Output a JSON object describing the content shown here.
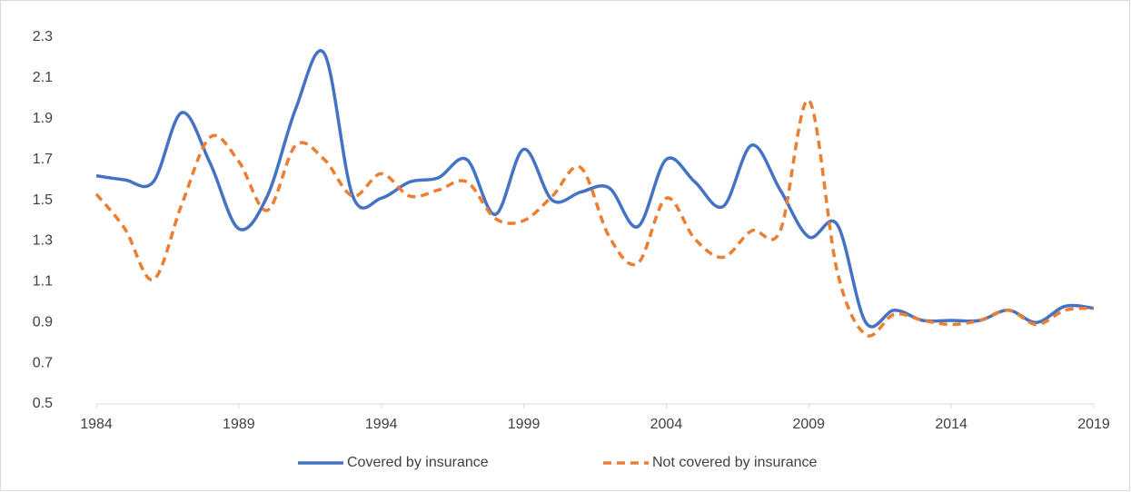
{
  "chart_data": {
    "type": "line",
    "x": [
      1984,
      1985,
      1986,
      1987,
      1988,
      1989,
      1990,
      1991,
      1992,
      1993,
      1994,
      1995,
      1996,
      1997,
      1998,
      1999,
      2000,
      2001,
      2002,
      2003,
      2004,
      2005,
      2006,
      2007,
      2008,
      2009,
      2010,
      2011,
      2012,
      2013,
      2014,
      2015,
      2016,
      2017,
      2018,
      2019
    ],
    "series": [
      {
        "name": "Covered by insurance",
        "color": "#4472c4",
        "dash": false,
        "values": [
          1.62,
          1.6,
          1.59,
          1.93,
          1.68,
          1.36,
          1.52,
          1.95,
          2.22,
          1.52,
          1.51,
          1.59,
          1.61,
          1.7,
          1.43,
          1.75,
          1.5,
          1.54,
          1.56,
          1.37,
          1.7,
          1.59,
          1.47,
          1.77,
          1.55,
          1.32,
          1.38,
          0.9,
          0.96,
          0.91,
          0.91,
          0.91,
          0.96,
          0.9,
          0.98,
          0.97
        ]
      },
      {
        "name": "Not covered by insurance",
        "color": "#ed7d31",
        "dash": true,
        "values": [
          1.53,
          1.36,
          1.11,
          1.48,
          1.81,
          1.69,
          1.45,
          1.77,
          1.7,
          1.52,
          1.63,
          1.52,
          1.55,
          1.59,
          1.41,
          1.4,
          1.52,
          1.66,
          1.32,
          1.19,
          1.51,
          1.31,
          1.22,
          1.35,
          1.35,
          1.99,
          1.15,
          0.84,
          0.94,
          0.91,
          0.89,
          0.91,
          0.96,
          0.89,
          0.96,
          0.97
        ]
      }
    ],
    "xlim": [
      1984,
      2019
    ],
    "xticks": [
      1984,
      1989,
      1994,
      1999,
      2004,
      2009,
      2014,
      2019
    ],
    "ylim": [
      0.5,
      2.3
    ],
    "yticks": [
      0.5,
      0.7,
      0.9,
      1.1,
      1.3,
      1.5,
      1.7,
      1.9,
      2.1,
      2.3
    ],
    "grid": false,
    "smooth": true,
    "legend": "bottom"
  }
}
